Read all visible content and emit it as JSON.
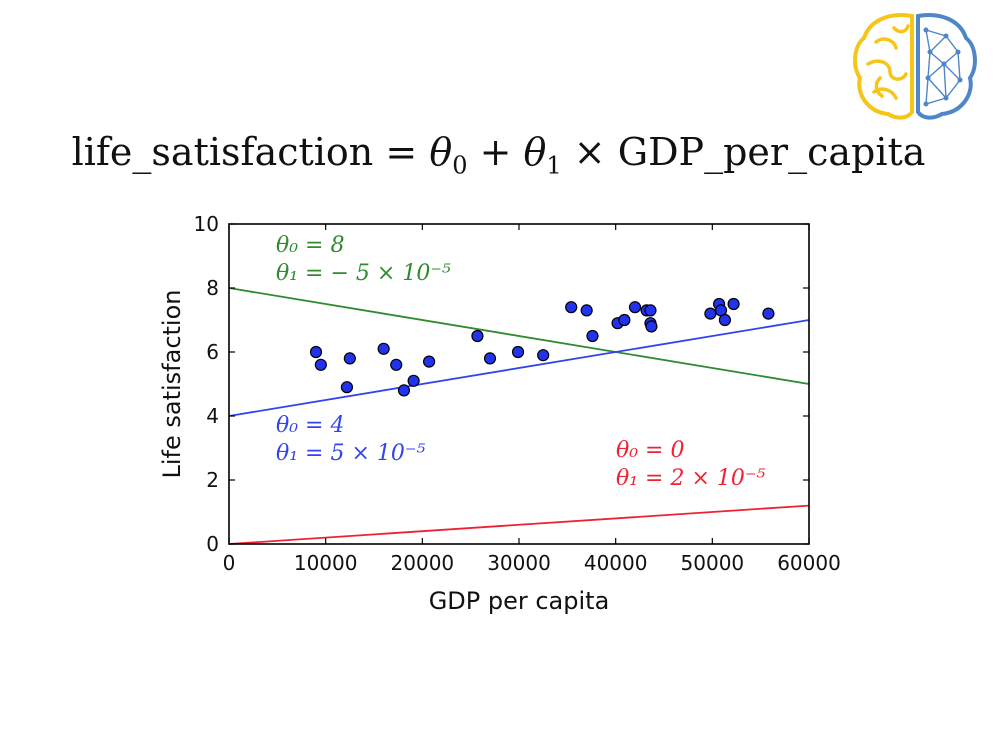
{
  "formula": {
    "lhs": "life_satisfaction",
    "eq": "=",
    "theta": "θ",
    "sub0": "0",
    "sub1": "1",
    "plus": "+",
    "times": "×",
    "var": "GDP_per_capita"
  },
  "logo": {
    "icon": "brain-icon",
    "left_color": "#f5c518",
    "right_color": "#4f86c6"
  },
  "chart_data": {
    "type": "scatter",
    "xlabel": "GDP per capita",
    "ylabel": "Life satisfaction",
    "xlim": [
      0,
      60000
    ],
    "ylim": [
      0,
      10
    ],
    "xticks": [
      "0",
      "10000",
      "20000",
      "30000",
      "40000",
      "50000",
      "60000"
    ],
    "yticks": [
      "0",
      "2",
      "4",
      "6",
      "8",
      "10"
    ],
    "grid": false,
    "points": [
      [
        9000,
        6.0
      ],
      [
        9500,
        5.6
      ],
      [
        12200,
        4.9
      ],
      [
        12500,
        5.8
      ],
      [
        16000,
        6.1
      ],
      [
        17300,
        5.6
      ],
      [
        18100,
        4.8
      ],
      [
        19100,
        5.1
      ],
      [
        20700,
        5.7
      ],
      [
        25700,
        6.5
      ],
      [
        27000,
        5.8
      ],
      [
        29900,
        6.0
      ],
      [
        32500,
        5.9
      ],
      [
        35400,
        7.4
      ],
      [
        37000,
        7.3
      ],
      [
        37600,
        6.5
      ],
      [
        40200,
        6.9
      ],
      [
        40900,
        7.0
      ],
      [
        42000,
        7.4
      ],
      [
        43200,
        7.3
      ],
      [
        43600,
        6.9
      ],
      [
        43600,
        7.3
      ],
      [
        43700,
        6.8
      ],
      [
        49800,
        7.2
      ],
      [
        50700,
        7.5
      ],
      [
        50900,
        7.3
      ],
      [
        51300,
        7.0
      ],
      [
        52200,
        7.5
      ],
      [
        55800,
        7.2
      ]
    ],
    "point_color": "#2233ee",
    "lines": [
      {
        "theta0": 8,
        "theta1": -5e-05,
        "color": "#2e8b2e",
        "label0": "θ₀ = 8",
        "label1": "θ₁ = − 5 × 10⁻⁵"
      },
      {
        "theta0": 4,
        "theta1": 5e-05,
        "color": "#3344ee",
        "label0": "θ₀ = 4",
        "label1": "θ₁ = 5 × 10⁻⁵"
      },
      {
        "theta0": 0,
        "theta1": 2e-05,
        "color": "#ee2233",
        "label0": "θ₀ = 0",
        "label1": "θ₁ = 2 × 10⁻⁵"
      }
    ]
  }
}
